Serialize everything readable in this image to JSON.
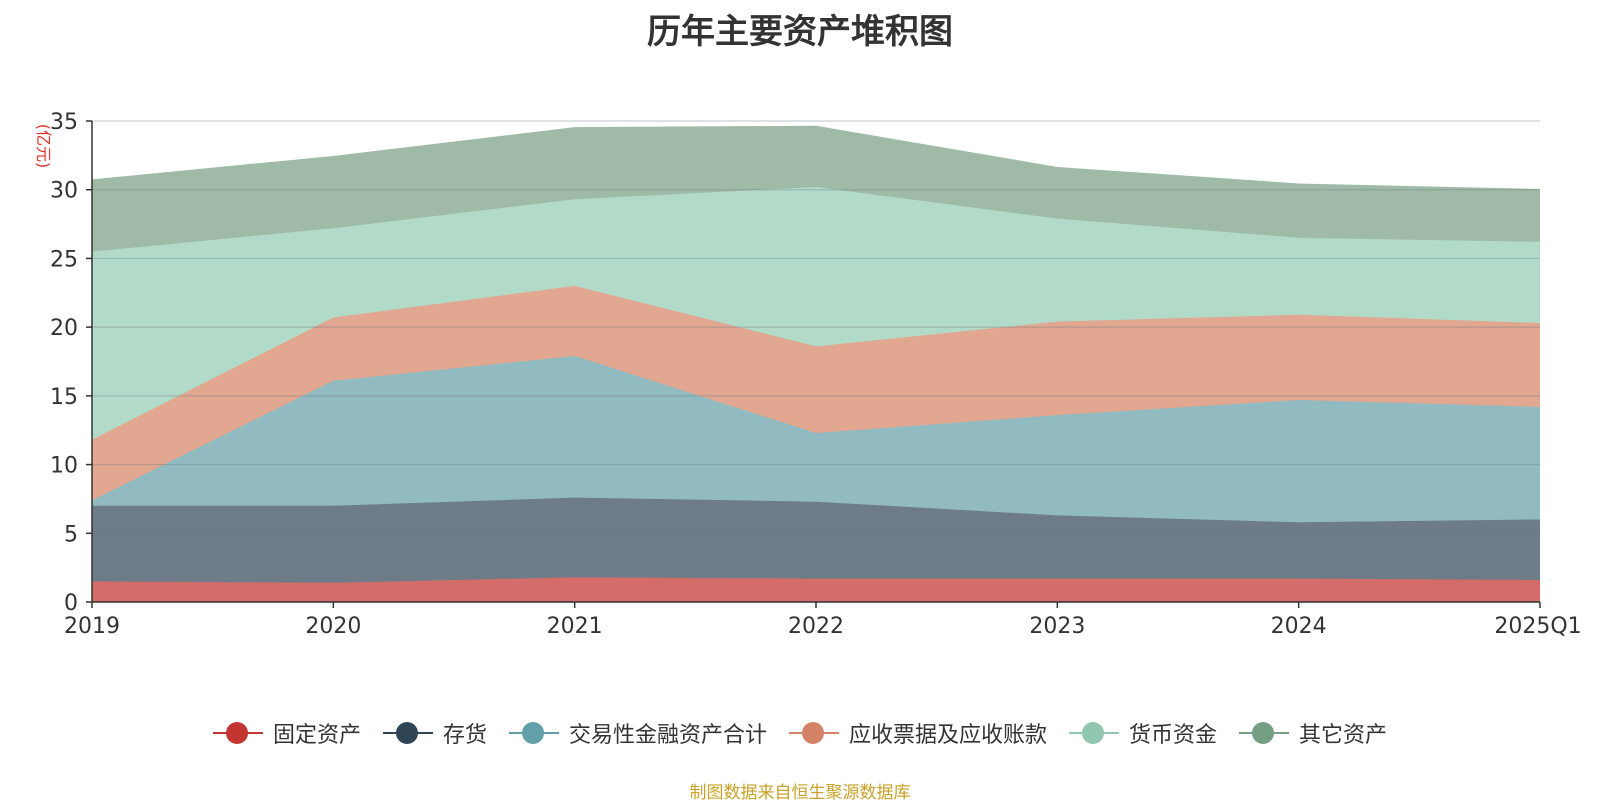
{
  "title": "历年主要资产堆积图",
  "source_text": "制图数据来自恒生聚源数据库",
  "chart_data": {
    "type": "area",
    "stacked": true,
    "title": "历年主要资产堆积图",
    "ylabel": "(亿元)",
    "xlabel": "",
    "ylim": [
      0,
      35
    ],
    "yticks": [
      0,
      5,
      10,
      15,
      20,
      25,
      30,
      35
    ],
    "categories": [
      "2019",
      "2020",
      "2021",
      "2022",
      "2023",
      "2024",
      "2025Q1"
    ],
    "grid": true,
    "legend_position": "bottom",
    "series": [
      {
        "name": "固定资产",
        "color": "#c23531",
        "area_color": "#d46c6a",
        "values": [
          1.5,
          1.4,
          1.8,
          1.7,
          1.7,
          1.7,
          1.6
        ]
      },
      {
        "name": "存货",
        "color": "#2f4554",
        "area_color": "#6e7c88",
        "values": [
          5.5,
          5.6,
          5.8,
          5.6,
          4.6,
          4.1,
          4.4
        ]
      },
      {
        "name": "交易性金融资产合计",
        "color": "#61a0a8",
        "area_color": "#91bbc1",
        "values": [
          0.4,
          9.1,
          10.3,
          5.0,
          7.3,
          8.9,
          8.2
        ]
      },
      {
        "name": "应收票据及应收账款",
        "color": "#d48265",
        "area_color": "#e1a790",
        "values": [
          4.4,
          4.6,
          5.1,
          6.3,
          6.8,
          6.2,
          6.1
        ]
      },
      {
        "name": "货币资金",
        "color": "#91c7ae",
        "area_color": "#b2dac8",
        "values": [
          13.7,
          6.5,
          6.3,
          11.6,
          7.5,
          5.6,
          5.9
        ]
      },
      {
        "name": "其它资产",
        "color": "#749f83",
        "area_color": "#9fbba8",
        "values": [
          5.2,
          5.2,
          5.2,
          4.4,
          3.7,
          3.9,
          3.8
        ]
      }
    ]
  }
}
